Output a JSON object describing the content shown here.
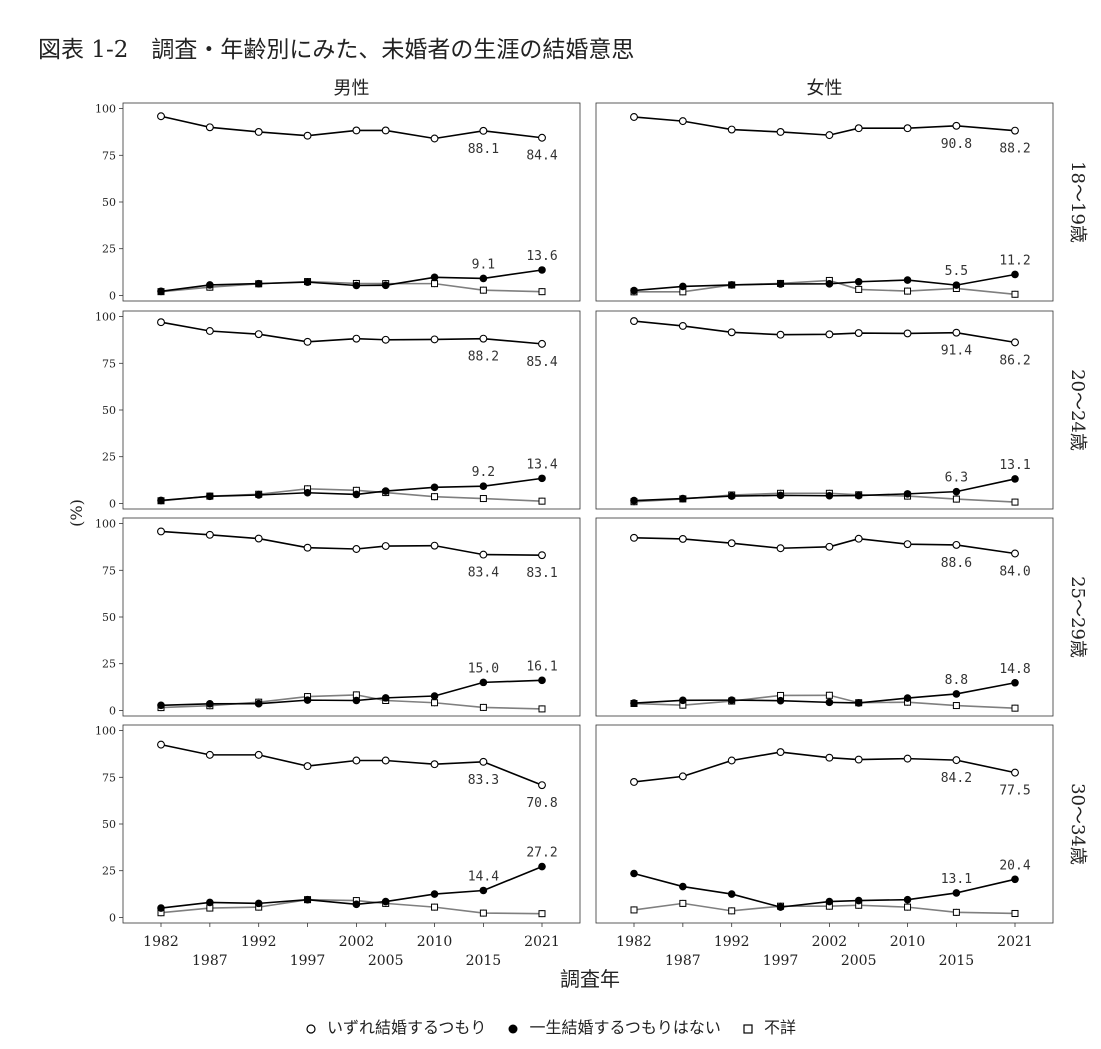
{
  "title": "図表 1-2　調査・年齢別にみた、未婚者の生涯の結婚意思",
  "colors": {
    "series1": "#000000",
    "series2": "#000000",
    "series3": "#7f7f7f",
    "panel_border": "#333333"
  },
  "chart_data": {
    "type": "line",
    "title": "図表 1-2　調査・年齢別にみた、未婚者の生涯の結婚意思",
    "xlabel": "調査年",
    "ylabel": "(%)",
    "x": [
      1982,
      1987,
      1992,
      1997,
      2002,
      2005,
      2010,
      2015,
      2021
    ],
    "x_tick_labels": [
      "1982",
      "1987",
      "1992",
      "1997",
      "2002",
      "2005",
      "2010",
      "2015",
      "2021"
    ],
    "y_ticks": [
      0,
      25,
      50,
      75,
      100
    ],
    "ylim": [
      -3,
      103
    ],
    "grid": false,
    "legend_position": "bottom",
    "series_names": [
      "いずれ結婚するつもり",
      "一生結婚するつもりはない",
      "不詳"
    ],
    "columns": [
      "男性",
      "女性"
    ],
    "rows": [
      "18～19歳",
      "20～24歳",
      "25～29歳",
      "30～34歳"
    ],
    "panels": [
      {
        "column": "男性",
        "row": "18～19歳",
        "series": [
          {
            "name": "いずれ結婚するつもり",
            "values": [
              95.9,
              90.0,
              87.5,
              85.5,
              88.3,
              88.3,
              84.0,
              88.1,
              84.4
            ]
          },
          {
            "name": "一生結婚するつもりはない",
            "values": [
              2.2,
              5.6,
              6.3,
              7.1,
              5.3,
              5.4,
              9.7,
              9.1,
              13.6
            ]
          },
          {
            "name": "不詳",
            "values": [
              2.0,
              4.4,
              6.2,
              7.4,
              6.4,
              6.3,
              6.3,
              2.8,
              2.0
            ]
          }
        ],
        "annotations": [
          {
            "x": 2015,
            "text": "88.1"
          },
          {
            "x": 2021,
            "text": "84.4"
          },
          {
            "x": 2015,
            "text": "9.1"
          },
          {
            "x": 2021,
            "text": "13.6"
          }
        ]
      },
      {
        "column": "女性",
        "row": "18～19歳",
        "series": [
          {
            "name": "いずれ結婚するつもり",
            "values": [
              95.5,
              93.3,
              88.8,
              87.5,
              85.8,
              89.5,
              89.5,
              90.8,
              88.2
            ]
          },
          {
            "name": "一生結婚するつもりはない",
            "values": [
              2.6,
              4.8,
              5.6,
              6.1,
              6.2,
              7.3,
              8.2,
              5.5,
              11.2
            ]
          },
          {
            "name": "不詳",
            "values": [
              1.9,
              1.9,
              5.6,
              6.4,
              8.0,
              3.2,
              2.3,
              3.7,
              0.6
            ]
          }
        ],
        "annotations": [
          {
            "x": 2015,
            "text": "90.8"
          },
          {
            "x": 2021,
            "text": "88.2"
          },
          {
            "x": 2015,
            "text": "5.5"
          },
          {
            "x": 2021,
            "text": "11.2"
          }
        ]
      },
      {
        "column": "男性",
        "row": "20～24歳",
        "series": [
          {
            "name": "いずれ結婚するつもり",
            "values": [
              97.0,
              92.3,
              90.6,
              86.5,
              88.2,
              87.6,
              87.8,
              88.2,
              85.4
            ]
          },
          {
            "name": "一生結婚するつもりはない",
            "values": [
              1.6,
              3.8,
              4.5,
              5.7,
              4.8,
              6.6,
              8.6,
              9.2,
              13.4
            ]
          },
          {
            "name": "不詳",
            "values": [
              1.4,
              3.9,
              4.9,
              7.8,
              7.0,
              5.8,
              3.6,
              2.6,
              1.2
            ]
          }
        ],
        "annotations": [
          {
            "x": 2015,
            "text": "88.2"
          },
          {
            "x": 2021,
            "text": "85.4"
          },
          {
            "x": 2015,
            "text": "9.2"
          },
          {
            "x": 2021,
            "text": "13.4"
          }
        ]
      },
      {
        "column": "女性",
        "row": "20～24歳",
        "series": [
          {
            "name": "いずれ結婚するつもり",
            "values": [
              97.6,
              95.0,
              91.6,
              90.3,
              90.5,
              91.2,
              91.0,
              91.4,
              86.2
            ]
          },
          {
            "name": "一生結婚するつもりはない",
            "values": [
              1.5,
              2.6,
              3.9,
              4.3,
              4.1,
              4.2,
              5.1,
              6.3,
              13.1
            ]
          },
          {
            "name": "不詳",
            "values": [
              0.9,
              2.4,
              4.5,
              5.4,
              5.4,
              4.6,
              3.9,
              2.3,
              0.7
            ]
          }
        ],
        "annotations": [
          {
            "x": 2015,
            "text": "91.4"
          },
          {
            "x": 2021,
            "text": "86.2"
          },
          {
            "x": 2015,
            "text": "6.3"
          },
          {
            "x": 2021,
            "text": "13.1"
          }
        ]
      },
      {
        "column": "男性",
        "row": "25～29歳",
        "series": [
          {
            "name": "いずれ結婚するつもり",
            "values": [
              95.8,
              94.0,
              92.0,
              87.1,
              86.4,
              88.0,
              88.2,
              83.4,
              83.1
            ]
          },
          {
            "name": "一生結婚するつもりはない",
            "values": [
              2.7,
              3.5,
              3.6,
              5.5,
              5.3,
              6.7,
              7.7,
              15.0,
              16.1
            ]
          },
          {
            "name": "不詳",
            "values": [
              1.5,
              2.5,
              4.4,
              7.4,
              8.3,
              5.3,
              4.1,
              1.6,
              0.8
            ]
          }
        ],
        "annotations": [
          {
            "x": 2015,
            "text": "83.4"
          },
          {
            "x": 2021,
            "text": "83.1"
          },
          {
            "x": 2015,
            "text": "15.0"
          },
          {
            "x": 2021,
            "text": "16.1"
          }
        ]
      },
      {
        "column": "女性",
        "row": "25～29歳",
        "series": [
          {
            "name": "いずれ結婚するつもり",
            "values": [
              92.4,
              91.8,
              89.5,
              86.8,
              87.6,
              91.9,
              89.0,
              88.6,
              84.0
            ]
          },
          {
            "name": "一生結婚するつもりはない",
            "values": [
              3.9,
              5.4,
              5.5,
              5.2,
              4.3,
              4.0,
              6.6,
              8.8,
              14.8
            ]
          },
          {
            "name": "不詳",
            "values": [
              3.7,
              2.8,
              5.0,
              8.0,
              8.1,
              4.1,
              4.4,
              2.6,
              1.2
            ]
          }
        ],
        "annotations": [
          {
            "x": 2015,
            "text": "88.6"
          },
          {
            "x": 2021,
            "text": "84.0"
          },
          {
            "x": 2015,
            "text": "8.8"
          },
          {
            "x": 2021,
            "text": "14.8"
          }
        ]
      },
      {
        "column": "男性",
        "row": "30～34歳",
        "series": [
          {
            "name": "いずれ結婚するつもり",
            "values": [
              92.5,
              87.0,
              87.0,
              81.0,
              84.0,
              84.0,
              82.0,
              83.3,
              70.8
            ]
          },
          {
            "name": "一生結婚するつもりはない",
            "values": [
              5.0,
              8.0,
              7.5,
              9.5,
              7.0,
              8.5,
              12.5,
              14.4,
              27.2
            ]
          },
          {
            "name": "不詳",
            "values": [
              2.5,
              5.0,
              5.5,
              9.5,
              9.0,
              7.5,
              5.5,
              2.3,
              2.0
            ]
          }
        ],
        "annotations": [
          {
            "x": 2015,
            "text": "83.3"
          },
          {
            "x": 2021,
            "text": "70.8"
          },
          {
            "x": 2015,
            "text": "14.4"
          },
          {
            "x": 2021,
            "text": "27.2"
          }
        ]
      },
      {
        "column": "女性",
        "row": "30～34歳",
        "series": [
          {
            "name": "いずれ結婚するつもり",
            "values": [
              72.5,
              75.5,
              84.0,
              88.5,
              85.5,
              84.5,
              85.0,
              84.2,
              77.5
            ]
          },
          {
            "name": "一生結婚するつもりはない",
            "values": [
              23.5,
              16.5,
              12.5,
              5.5,
              8.5,
              9.0,
              9.5,
              13.1,
              20.4
            ]
          },
          {
            "name": "不詳",
            "values": [
              4.0,
              7.5,
              3.5,
              6.0,
              6.0,
              6.5,
              5.5,
              2.7,
              2.1
            ]
          }
        ],
        "annotations": [
          {
            "x": 2015,
            "text": "84.2"
          },
          {
            "x": 2021,
            "text": "77.5"
          },
          {
            "x": 2015,
            "text": "13.1"
          },
          {
            "x": 2021,
            "text": "20.4"
          }
        ]
      }
    ]
  }
}
